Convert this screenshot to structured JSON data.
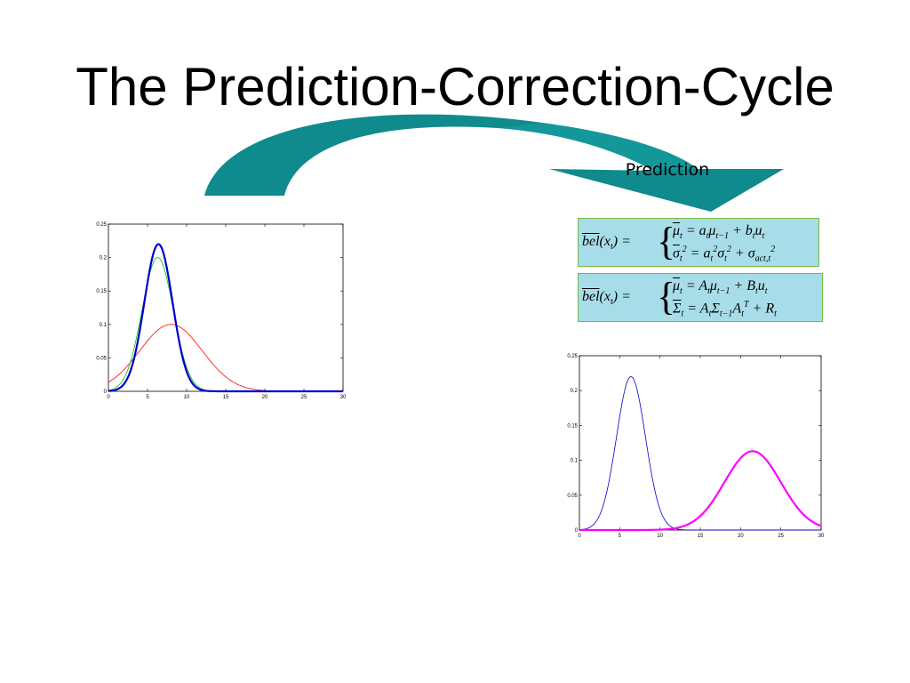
{
  "slide": {
    "title": "The Prediction-Correction-Cycle",
    "arrow_label": "Prediction",
    "colors": {
      "arrow_teal": "#0f8a8d",
      "formula_bg": "#a7dde8",
      "formula_border": "#77b843"
    }
  },
  "formulas": [
    {
      "lhs": "bel(x_t) =",
      "line1": "μ̄_t = a_t μ_{t−1} + b_t u_t",
      "line2": "σ̄_t² = a_t² σ_t² + σ²_{act,t}"
    },
    {
      "lhs": "bel(x_t) =",
      "line1": "μ̄_t = A_t μ_{t−1} + B_t u_t",
      "line2": "Σ̄_t = A_t Σ_{t−1} A_t^T + R_t"
    }
  ],
  "chart_data": [
    {
      "type": "line",
      "title": "",
      "xlabel": "",
      "ylabel": "",
      "xlim": [
        0,
        30
      ],
      "ylim": [
        0,
        0.25
      ],
      "x_ticks": [
        "0",
        "5",
        "10",
        "15",
        "20",
        "25",
        "30"
      ],
      "y_ticks": [
        "0",
        "0.05",
        "0.1",
        "0.15",
        "0.2",
        "0.25"
      ],
      "series": [
        {
          "color": "#ff0000",
          "curve": "gaussian",
          "mu": 8,
          "sigma": 4,
          "peak": 0.1,
          "stroke_width": 0.8
        },
        {
          "color": "#00c000",
          "curve": "gaussian",
          "mu": 6.3,
          "sigma": 2.0,
          "peak": 0.2,
          "stroke_width": 0.8
        },
        {
          "color": "#0000cc",
          "curve": "gaussian",
          "mu": 6.4,
          "sigma": 1.8,
          "peak": 0.22,
          "stroke_width": 2.2
        }
      ]
    },
    {
      "type": "line",
      "title": "",
      "xlabel": "",
      "ylabel": "",
      "xlim": [
        0,
        30
      ],
      "ylim": [
        0,
        0.25
      ],
      "x_ticks": [
        "0",
        "5",
        "10",
        "15",
        "20",
        "25",
        "30"
      ],
      "y_ticks": [
        "0",
        "0.05",
        "0.1",
        "0.15",
        "0.2",
        "0.25"
      ],
      "series": [
        {
          "color": "#0000cc",
          "curve": "gaussian",
          "mu": 6.4,
          "sigma": 1.8,
          "peak": 0.22,
          "stroke_width": 0.8
        },
        {
          "color": "#ff00ff",
          "curve": "gaussian",
          "mu": 21.5,
          "sigma": 3.5,
          "peak": 0.113,
          "stroke_width": 2.2
        }
      ]
    }
  ]
}
